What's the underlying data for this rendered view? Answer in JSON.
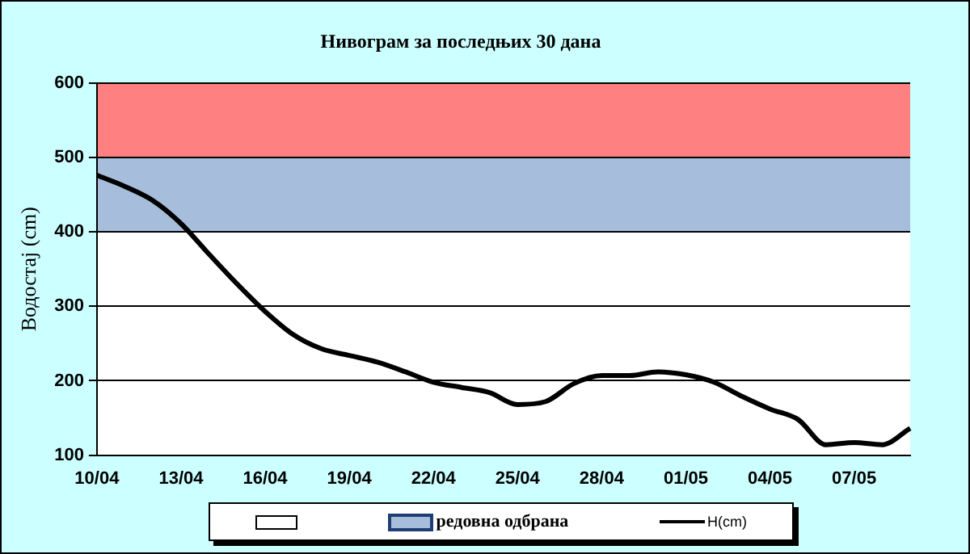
{
  "chart_data": {
    "type": "line",
    "title": "Нивограм за последњих 30 дана",
    "ylabel": "Водостај (cm)",
    "categories": [
      "10/04",
      null,
      null,
      "13/04",
      null,
      null,
      "16/04",
      null,
      null,
      "19/04",
      null,
      null,
      "22/04",
      null,
      null,
      "25/04",
      null,
      null,
      "28/04",
      null,
      null,
      "01/05",
      null,
      null,
      "04/05",
      null,
      null,
      "07/05",
      null,
      null
    ],
    "series": [
      {
        "name": "H(cm)",
        "color": "#000000",
        "values": [
          476,
          461,
          442,
          411,
          370,
          330,
          293,
          262,
          243,
          234,
          225,
          212,
          198,
          191,
          184,
          168,
          172,
          196,
          207,
          207,
          212,
          208,
          198,
          179,
          162,
          148,
          114,
          117,
          114,
          136
        ]
      }
    ],
    "ylim": [
      100,
      600
    ],
    "yticks": [
      100,
      200,
      300,
      400,
      500,
      600
    ],
    "grid": "y",
    "legend": "bottom",
    "marker": "none",
    "line_style": "solid",
    "bands": [
      {
        "axis": "y",
        "from": 400,
        "to": 500,
        "label": "редовна одбрана",
        "color": "#a6bedb"
      },
      {
        "axis": "y",
        "from": 500,
        "to": 600,
        "color": "#ff8080"
      }
    ]
  }
}
